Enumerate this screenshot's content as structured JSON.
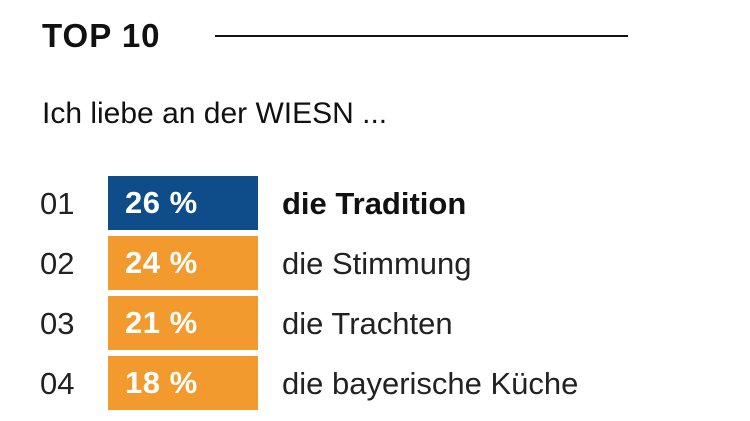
{
  "heading": "TOP 10",
  "subtitle": "Ich liebe an der WIESN ...",
  "colors": {
    "highlight": "#0f4c8a",
    "default": "#f39a2e"
  },
  "chart_data": {
    "type": "table",
    "title": "Ich liebe an der WIESN ...",
    "unit": "%",
    "rows": [
      {
        "rank": "01",
        "value": 26,
        "value_label": "26 %",
        "label": "die Tradition",
        "highlight": true
      },
      {
        "rank": "02",
        "value": 24,
        "value_label": "24 %",
        "label": "die Stimmung",
        "highlight": false
      },
      {
        "rank": "03",
        "value": 21,
        "value_label": "21 %",
        "label": "die Trachten",
        "highlight": false
      },
      {
        "rank": "04",
        "value": 18,
        "value_label": "18 %",
        "label": "die bayerische Küche",
        "highlight": false
      }
    ]
  }
}
